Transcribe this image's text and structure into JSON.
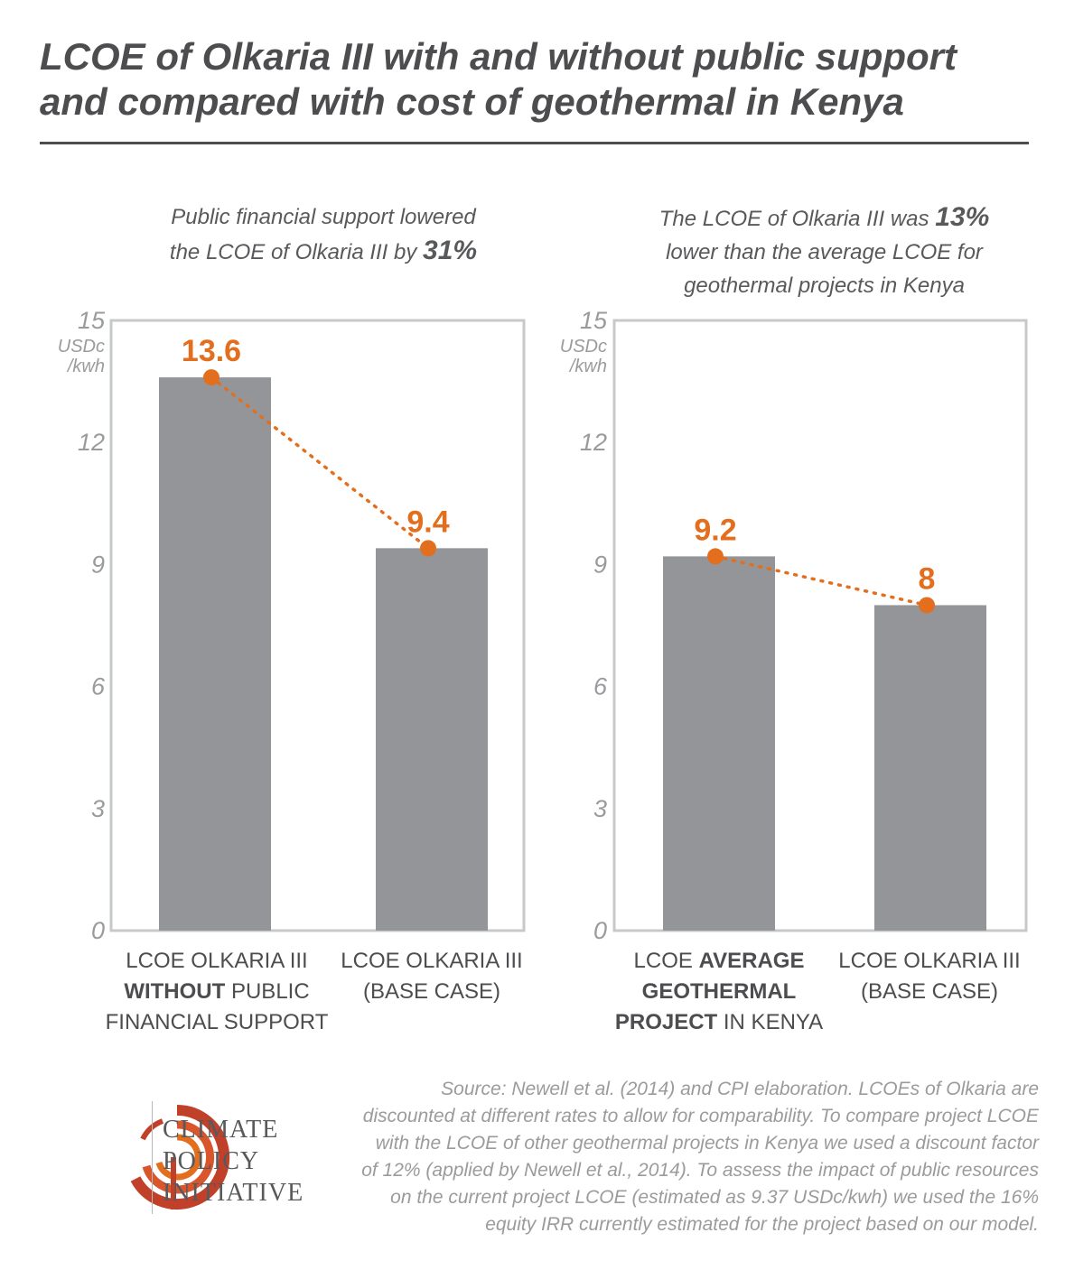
{
  "title": "LCOE of Olkaria III with and without public support and compared with cost of geothermal in Kenya",
  "chart_data": [
    {
      "type": "bar",
      "subtitle": [
        "Public financial support lowered",
        "the LCOE of Olkaria III by",
        "31%"
      ],
      "unit_label": [
        "USDc",
        "/kwh"
      ],
      "ylim": [
        0,
        15
      ],
      "yticks": [
        0,
        3,
        6,
        9,
        12,
        15
      ],
      "categories": [
        [
          [
            "LCOE OLKARIA III",
            false
          ],
          [
            "WITHOUT",
            true,
            " PUBLIC"
          ],
          [
            "FINANCIAL SUPPORT",
            false
          ]
        ],
        [
          [
            "LCOE OLKARIA III",
            false
          ],
          [
            "(BASE CASE)",
            false
          ]
        ]
      ],
      "values": [
        13.6,
        9.4
      ],
      "value_labels": [
        "13.6",
        "9.4"
      ],
      "connector": "dotted orange line between value markers"
    },
    {
      "type": "bar",
      "subtitle": [
        "The LCOE of Olkaria III was",
        "13%",
        "lower than the average LCOE for",
        "geothermal projects in Kenya"
      ],
      "unit_label": [
        "USDc",
        "/kwh"
      ],
      "ylim": [
        0,
        15
      ],
      "yticks": [
        0,
        3,
        6,
        9,
        12,
        15
      ],
      "categories": [
        [
          [
            "LCOE ",
            false,
            "AVERAGE"
          ],
          [
            "GEOTHERMAL",
            true
          ],
          [
            "PROJECT",
            true,
            " IN KENYA"
          ]
        ],
        [
          [
            "LCOE OLKARIA III",
            false
          ],
          [
            "(BASE CASE)",
            false
          ]
        ]
      ],
      "values": [
        9.2,
        8
      ],
      "value_labels": [
        "9.2",
        "8"
      ],
      "connector": "dotted orange line between value markers"
    }
  ],
  "colors": {
    "bar": "#939598",
    "accent": "#e36f1e",
    "frame": "#c7c8ca",
    "axis_text": "#9a9b9d",
    "title": "#4d4d4f"
  },
  "source": "Source: Newell et al. (2014) and CPI elaboration. LCOEs of Olkaria are discounted at different rates to allow for comparability. To compare project LCOE with the LCOE of other geothermal projects in Kenya we used a discount factor of 12% (applied by Newell et al., 2014). To assess the impact of public resources on the current project LCOE (estimated as 9.37 USDc/kwh) we used the 16% equity IRR currently estimated for the project based on our model.",
  "logo": {
    "name": "climate-policy-initiative-logo",
    "lines": [
      "CLIMATE",
      "POLICY",
      "INITIATIVE"
    ]
  }
}
